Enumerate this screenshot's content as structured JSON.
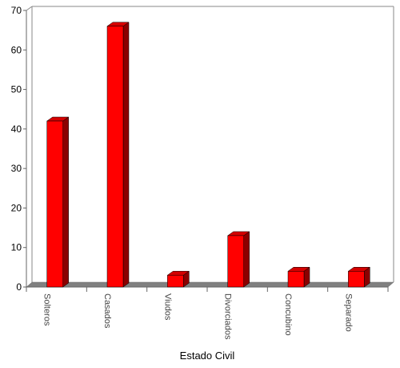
{
  "chart_data": {
    "type": "bar",
    "categories": [
      "Solteros",
      "Casados",
      "Viudos",
      "Divorciados",
      "Concubino",
      "Separado"
    ],
    "values": [
      42,
      66,
      3,
      13,
      4,
      4
    ],
    "xlabel": "Estado Civil",
    "ylabel": "",
    "ylim": [
      0,
      70
    ],
    "yticks": [
      0,
      10,
      20,
      30,
      40,
      50,
      60,
      70
    ],
    "grid": false,
    "legend": "none",
    "three_d": true,
    "colors": {
      "bar_front": "#ff0000",
      "bar_side": "#8b0000",
      "bar_top": "#d40000",
      "floor": "#808080",
      "axis": "#666666"
    }
  }
}
